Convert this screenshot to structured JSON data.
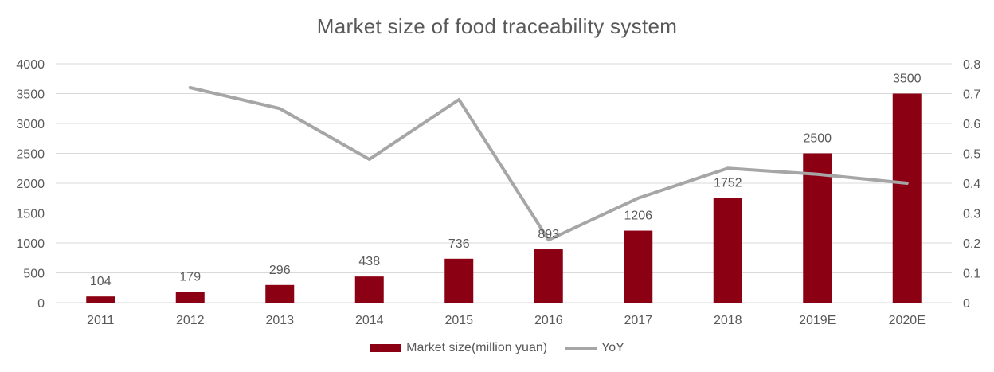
{
  "chart_data": {
    "type": "bar",
    "title": "Market size of food traceability system",
    "categories": [
      "2011",
      "2012",
      "2013",
      "2014",
      "2015",
      "2016",
      "2017",
      "2018",
      "2019E",
      "2020E"
    ],
    "series": [
      {
        "name": "Market size(million yuan)",
        "type": "bar",
        "axis": "left",
        "color": "#8B0012",
        "values": [
          104,
          179,
          296,
          438,
          736,
          893,
          1206,
          1752,
          2500,
          3500
        ],
        "labels": [
          "104",
          "179",
          "296",
          "438",
          "736",
          "893",
          "1206",
          "1752",
          "2500",
          "3500"
        ]
      },
      {
        "name": "YoY",
        "type": "line",
        "axis": "right",
        "color": "#A6A6A6",
        "values": [
          null,
          0.72,
          0.65,
          0.48,
          0.68,
          0.21,
          0.35,
          0.45,
          0.43,
          0.4
        ]
      }
    ],
    "ylim_left": [
      0,
      4000
    ],
    "yticks_left": [
      "0",
      "500",
      "1000",
      "1500",
      "2000",
      "2500",
      "3000",
      "3500",
      "4000"
    ],
    "ylim_right": [
      0,
      0.8
    ],
    "yticks_right": [
      "0",
      "0.1",
      "0.2",
      "0.3",
      "0.4",
      "0.5",
      "0.6",
      "0.7",
      "0.8"
    ],
    "grid": true,
    "legend_position": "bottom"
  }
}
